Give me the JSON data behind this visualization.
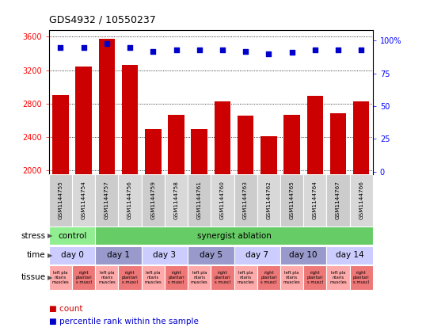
{
  "title": "GDS4932 / 10550237",
  "samples": [
    "GSM1144755",
    "GSM1144754",
    "GSM1144757",
    "GSM1144756",
    "GSM1144759",
    "GSM1144758",
    "GSM1144761",
    "GSM1144760",
    "GSM1144763",
    "GSM1144762",
    "GSM1144765",
    "GSM1144764",
    "GSM1144767",
    "GSM1144766"
  ],
  "counts": [
    2900,
    3240,
    3580,
    3260,
    2490,
    2660,
    2490,
    2820,
    2650,
    2410,
    2660,
    2890,
    2680,
    2820
  ],
  "percentiles": [
    95,
    95,
    98,
    95,
    92,
    93,
    93,
    93,
    92,
    90,
    91,
    93,
    93,
    93
  ],
  "bar_color": "#cc0000",
  "percentile_color": "#0000cc",
  "ylim_left": [
    1950,
    3680
  ],
  "ylim_right": [
    -2,
    108
  ],
  "yticks_left": [
    2000,
    2400,
    2800,
    3200,
    3600
  ],
  "yticks_right": [
    0,
    25,
    50,
    75,
    100
  ],
  "ytick_labels_right": [
    "0",
    "25",
    "50",
    "75",
    "100%"
  ],
  "bar_width": 0.7,
  "stress_light": "#90EE90",
  "stress_dark": "#66CC66",
  "time_colors": [
    "#CCCCFF",
    "#9999CC",
    "#CCCCFF",
    "#9999CC",
    "#CCCCFF",
    "#9999CC",
    "#CCCCFF"
  ],
  "time_labels": [
    "day 0",
    "day 1",
    "day 3",
    "day 5",
    "day 7",
    "day 10",
    "day 14"
  ],
  "tissue_light": "#FFAAAA",
  "tissue_dark": "#EE7777",
  "tissue_texts_even": "left pla\nntaris\nmuscles",
  "tissue_texts_odd": "right\nplantari\ns muscl",
  "legend_count_color": "#cc0000",
  "legend_percentile_color": "#0000cc"
}
